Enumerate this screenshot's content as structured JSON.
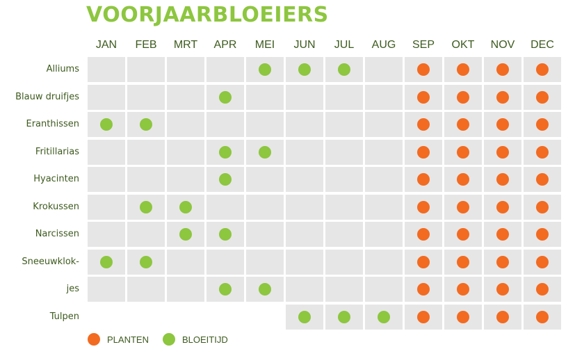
{
  "title": "VOORJAARBLOEIERS",
  "colors": {
    "title": "#8dc63f",
    "planten": "#f26b21",
    "bloeitijd": "#8dc63f",
    "cell": "#e6e6e6",
    "label_text": "#3d5a1e"
  },
  "legend": {
    "planten": "PLANTEN",
    "bloeitijd": "BLOEITIJD"
  },
  "chart_data": {
    "type": "table",
    "title": "VOORJAARBLOEIERS",
    "columns": [
      "JAN",
      "FEB",
      "MRT",
      "APR",
      "MEI",
      "JUN",
      "JUL",
      "AUG",
      "SEP",
      "OKT",
      "NOV",
      "DEC"
    ],
    "rows": [
      "Alliums",
      "Blauw druifjes",
      "Eranthissen",
      "Fritillarias",
      "Hyacinten",
      "Krokussen",
      "Narcissen",
      "Sneeuwklok-",
      "jes",
      "Tulpen"
    ],
    "series": [
      {
        "name": "PLANTEN",
        "key": "planten",
        "cells": {
          "Alliums": [
            "SEP",
            "OKT",
            "NOV",
            "DEC"
          ],
          "Blauw druifjes": [
            "SEP",
            "OKT",
            "NOV",
            "DEC"
          ],
          "Eranthissen": [
            "SEP",
            "OKT",
            "NOV",
            "DEC"
          ],
          "Fritillarias": [
            "SEP",
            "OKT",
            "NOV",
            "DEC"
          ],
          "Hyacinten": [
            "SEP",
            "OKT",
            "NOV",
            "DEC"
          ],
          "Krokussen": [
            "SEP",
            "OKT",
            "NOV",
            "DEC"
          ],
          "Narcissen": [
            "SEP",
            "OKT",
            "NOV",
            "DEC"
          ],
          "Sneeuwklok-": [
            "SEP",
            "OKT",
            "NOV",
            "DEC"
          ],
          "jes": [
            "SEP",
            "OKT",
            "NOV",
            "DEC"
          ],
          "Tulpen": [
            "SEP",
            "OKT",
            "NOV",
            "DEC"
          ]
        }
      },
      {
        "name": "BLOEITIJD",
        "key": "bloeitijd",
        "cells": {
          "Alliums": [
            "MEI",
            "JUN",
            "JUL"
          ],
          "Blauw druifjes": [
            "APR"
          ],
          "Eranthissen": [
            "JAN",
            "FEB"
          ],
          "Fritillarias": [
            "APR",
            "MEI"
          ],
          "Hyacinten": [
            "APR"
          ],
          "Krokussen": [
            "FEB",
            "MRT"
          ],
          "Narcissen": [
            "MRT",
            "APR"
          ],
          "Sneeuwklok-": [
            "JAN",
            "FEB"
          ],
          "jes": [
            "APR",
            "MEI"
          ],
          "Tulpen": [
            "JUN",
            "JUL",
            "AUG"
          ]
        }
      }
    ],
    "empty_cells": {
      "Tulpen": [
        "JAN",
        "FEB",
        "MRT",
        "APR",
        "MEI"
      ]
    }
  }
}
